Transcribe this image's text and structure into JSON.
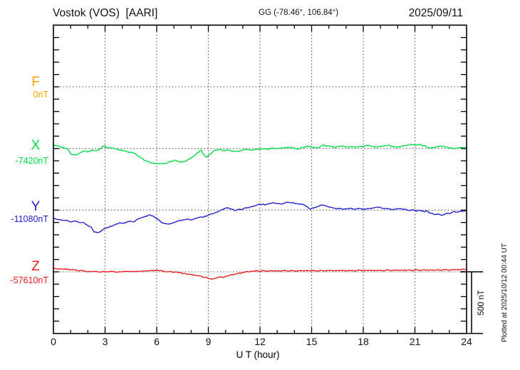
{
  "header": {
    "station_title": "Vostok (VOS)  [AARI]",
    "gg_coords": "GG (-78.46°, 106.84°)",
    "date": "2025/09/11"
  },
  "x_axis": {
    "label": "U T (hour)",
    "tick_labels": [
      "0",
      "3",
      "6",
      "9",
      "12",
      "15",
      "18",
      "21",
      "24"
    ],
    "min_hour": 0,
    "max_hour": 24,
    "major_step_hours": 3,
    "minor_step_hours": 1
  },
  "components": [
    {
      "id": "F",
      "label": "F",
      "baseline_label": "0nT",
      "baseline_nT": 0,
      "color": "#FFA400"
    },
    {
      "id": "X",
      "label": "X",
      "baseline_label": "-7420nT",
      "baseline_nT": -7420,
      "color": "#00DD44"
    },
    {
      "id": "Y",
      "label": "Y",
      "baseline_label": "-11080nT",
      "baseline_nT": -11080,
      "color": "#2020D0"
    },
    {
      "id": "Z",
      "label": "Z",
      "baseline_label": "-57610nT",
      "baseline_nT": -57610,
      "color": "#ED1C1C"
    }
  ],
  "scale_bar": {
    "label": "500 nT",
    "nT": 500
  },
  "footer_note": "Plotted at 2025/10/12 00:44 UT",
  "chart_data": {
    "type": "line",
    "title": "Vostok (VOS) [AARI] magnetogram 2025/09/11",
    "xlabel": "U T (hour)",
    "x_range": [
      0,
      24
    ],
    "units": "nT",
    "grid": "dotted vertical lines every 3 hours; dotted horizontal baseline per component",
    "legend_position": "left axis component labels",
    "scale_note": "500 nT reference bar at right; minor division = 100 nT",
    "series": [
      {
        "name": "F",
        "baseline_nT": 0,
        "color": "#FFA400",
        "points_hour_offset_nT": []
      },
      {
        "name": "X",
        "baseline_nT": -7420,
        "color": "#00DD44",
        "points_hour_offset_nT": [
          [
            0,
            27
          ],
          [
            0.29,
            21
          ],
          [
            0.62,
            4
          ],
          [
            0.83,
            -2
          ],
          [
            1.03,
            -48
          ],
          [
            1.24,
            -54
          ],
          [
            1.53,
            -36
          ],
          [
            1.78,
            -19
          ],
          [
            2.07,
            -25
          ],
          [
            2.28,
            -13
          ],
          [
            2.48,
            -19
          ],
          [
            2.77,
            4
          ],
          [
            2.98,
            21
          ],
          [
            3.19,
            4
          ],
          [
            3.43,
            4
          ],
          [
            3.64,
            -2
          ],
          [
            3.85,
            -13
          ],
          [
            4.14,
            -19
          ],
          [
            4.43,
            -31
          ],
          [
            4.76,
            -42
          ],
          [
            5.09,
            -77
          ],
          [
            5.38,
            -100
          ],
          [
            5.67,
            -117
          ],
          [
            6,
            -123
          ],
          [
            6.33,
            -123
          ],
          [
            6.62,
            -117
          ],
          [
            6.83,
            -106
          ],
          [
            7.03,
            -94
          ],
          [
            7.24,
            -106
          ],
          [
            7.45,
            -111
          ],
          [
            7.74,
            -100
          ],
          [
            7.99,
            -77
          ],
          [
            8.23,
            -54
          ],
          [
            8.44,
            -31
          ],
          [
            8.57,
            -13
          ],
          [
            8.73,
            -48
          ],
          [
            8.9,
            -71
          ],
          [
            9.1,
            -48
          ],
          [
            9.31,
            -19
          ],
          [
            9.64,
            -8
          ],
          [
            9.93,
            -19
          ],
          [
            10.22,
            -13
          ],
          [
            10.55,
            -25
          ],
          [
            10.88,
            -19
          ],
          [
            11.17,
            -8
          ],
          [
            11.46,
            -13
          ],
          [
            11.79,
            -8
          ],
          [
            12.12,
            -2
          ],
          [
            12.41,
            -8
          ],
          [
            12.7,
            4
          ],
          [
            13.03,
            -2
          ],
          [
            13.37,
            4
          ],
          [
            13.66,
            10
          ],
          [
            13.94,
            4
          ],
          [
            14.28,
            -2
          ],
          [
            14.61,
            10
          ],
          [
            14.77,
            21
          ],
          [
            15.02,
            10
          ],
          [
            15.31,
            4
          ],
          [
            15.52,
            16
          ],
          [
            15.72,
            27
          ],
          [
            16.01,
            21
          ],
          [
            16.26,
            10
          ],
          [
            16.55,
            16
          ],
          [
            16.76,
            21
          ],
          [
            17.09,
            10
          ],
          [
            17.38,
            16
          ],
          [
            17.59,
            10
          ],
          [
            17.92,
            16
          ],
          [
            18.21,
            27
          ],
          [
            18.41,
            21
          ],
          [
            18.74,
            10
          ],
          [
            18.91,
            16
          ],
          [
            19.16,
            21
          ],
          [
            19.45,
            27
          ],
          [
            19.74,
            16
          ],
          [
            19.99,
            10
          ],
          [
            20.28,
            21
          ],
          [
            20.57,
            27
          ],
          [
            20.81,
            33
          ],
          [
            21.1,
            27
          ],
          [
            21.31,
            33
          ],
          [
            21.52,
            21
          ],
          [
            21.72,
            10
          ],
          [
            21.93,
            4
          ],
          [
            22.22,
            10
          ],
          [
            22.47,
            21
          ],
          [
            22.63,
            16
          ],
          [
            22.88,
            10
          ],
          [
            23.05,
            4
          ],
          [
            23.3,
            -2
          ],
          [
            23.59,
            8
          ],
          [
            23.79,
            5
          ],
          [
            24,
            10
          ]
        ]
      },
      {
        "name": "Y",
        "baseline_nT": -11080,
        "color": "#2020D0",
        "points_hour_offset_nT": [
          [
            0,
            -67
          ],
          [
            0.41,
            -79
          ],
          [
            0.83,
            -85
          ],
          [
            1.03,
            -96
          ],
          [
            1.32,
            -90
          ],
          [
            1.57,
            -102
          ],
          [
            1.78,
            -102
          ],
          [
            1.94,
            -119
          ],
          [
            2.19,
            -137
          ],
          [
            2.36,
            -177
          ],
          [
            2.57,
            -183
          ],
          [
            2.81,
            -165
          ],
          [
            3.1,
            -142
          ],
          [
            3.39,
            -131
          ],
          [
            3.64,
            -114
          ],
          [
            3.85,
            -102
          ],
          [
            4.01,
            -108
          ],
          [
            4.26,
            -96
          ],
          [
            4.47,
            -90
          ],
          [
            4.68,
            -96
          ],
          [
            4.88,
            -73
          ],
          [
            5.09,
            -62
          ],
          [
            5.34,
            -50
          ],
          [
            5.59,
            -39
          ],
          [
            5.83,
            -50
          ],
          [
            6.04,
            -73
          ],
          [
            6.25,
            -96
          ],
          [
            6.46,
            -108
          ],
          [
            6.66,
            -114
          ],
          [
            6.87,
            -108
          ],
          [
            7.08,
            -96
          ],
          [
            7.28,
            -85
          ],
          [
            7.53,
            -79
          ],
          [
            7.74,
            -73
          ],
          [
            7.94,
            -79
          ],
          [
            8.15,
            -73
          ],
          [
            8.4,
            -62
          ],
          [
            8.61,
            -56
          ],
          [
            8.86,
            -50
          ],
          [
            9.1,
            -33
          ],
          [
            9.31,
            -27
          ],
          [
            9.52,
            -16
          ],
          [
            9.72,
            0
          ],
          [
            9.93,
            13
          ],
          [
            10.14,
            19
          ],
          [
            10.39,
            8
          ],
          [
            10.59,
            -4
          ],
          [
            10.8,
            8
          ],
          [
            11.01,
            8
          ],
          [
            11.21,
            19
          ],
          [
            11.42,
            25
          ],
          [
            11.63,
            31
          ],
          [
            11.83,
            42
          ],
          [
            12,
            48
          ],
          [
            12.29,
            42
          ],
          [
            12.54,
            54
          ],
          [
            12.74,
            59
          ],
          [
            13.03,
            54
          ],
          [
            13.24,
            48
          ],
          [
            13.45,
            59
          ],
          [
            13.66,
            65
          ],
          [
            13.86,
            59
          ],
          [
            14.11,
            54
          ],
          [
            14.32,
            48
          ],
          [
            14.57,
            42
          ],
          [
            14.77,
            25
          ],
          [
            14.94,
            8
          ],
          [
            15.14,
            19
          ],
          [
            15.39,
            31
          ],
          [
            15.6,
            42
          ],
          [
            15.81,
            36
          ],
          [
            16.01,
            25
          ],
          [
            16.22,
            19
          ],
          [
            16.43,
            13
          ],
          [
            16.68,
            13
          ],
          [
            16.88,
            8
          ],
          [
            17.17,
            13
          ],
          [
            17.46,
            8
          ],
          [
            17.79,
            13
          ],
          [
            18.08,
            8
          ],
          [
            18.33,
            13
          ],
          [
            18.62,
            19
          ],
          [
            18.83,
            25
          ],
          [
            19.03,
            19
          ],
          [
            19.32,
            13
          ],
          [
            19.57,
            8
          ],
          [
            19.86,
            8
          ],
          [
            20.15,
            13
          ],
          [
            20.4,
            8
          ],
          [
            20.69,
            -4
          ],
          [
            20.9,
            4
          ],
          [
            21.1,
            -8
          ],
          [
            21.31,
            -2
          ],
          [
            21.56,
            -13
          ],
          [
            21.72,
            -8
          ],
          [
            21.93,
            -25
          ],
          [
            22.14,
            -36
          ],
          [
            22.34,
            -31
          ],
          [
            22.55,
            -42
          ],
          [
            22.76,
            -31
          ],
          [
            22.97,
            -27
          ],
          [
            23.17,
            -16
          ],
          [
            23.38,
            -16
          ],
          [
            23.59,
            -10
          ],
          [
            23.79,
            -10
          ],
          [
            24,
            -2
          ]
        ]
      },
      {
        "name": "Z",
        "baseline_nT": -57610,
        "color": "#ED1C1C",
        "points_hour_offset_nT": [
          [
            0,
            27
          ],
          [
            0.41,
            24
          ],
          [
            0.83,
            21
          ],
          [
            1.24,
            16
          ],
          [
            1.53,
            10
          ],
          [
            1.86,
            4
          ],
          [
            2.19,
            1
          ],
          [
            2.48,
            4
          ],
          [
            2.77,
            -2
          ],
          [
            3.1,
            1
          ],
          [
            3.43,
            4
          ],
          [
            3.72,
            -2
          ],
          [
            4.01,
            1
          ],
          [
            4.34,
            4
          ],
          [
            4.68,
            1
          ],
          [
            5.01,
            4
          ],
          [
            5.34,
            7
          ],
          [
            5.67,
            10
          ],
          [
            5.92,
            13
          ],
          [
            6.17,
            10
          ],
          [
            6.41,
            4
          ],
          [
            6.74,
            1
          ],
          [
            7.03,
            -2
          ],
          [
            7.32,
            -8
          ],
          [
            7.57,
            -13
          ],
          [
            7.82,
            -19
          ],
          [
            8.07,
            -22
          ],
          [
            8.32,
            -31
          ],
          [
            8.57,
            -36
          ],
          [
            8.81,
            -45
          ],
          [
            9.06,
            -54
          ],
          [
            9.31,
            -57
          ],
          [
            9.52,
            -48
          ],
          [
            9.72,
            -39
          ],
          [
            9.89,
            -45
          ],
          [
            10.06,
            -36
          ],
          [
            10.3,
            -25
          ],
          [
            10.55,
            -19
          ],
          [
            10.8,
            -10
          ],
          [
            11.05,
            -5
          ],
          [
            11.3,
            1
          ],
          [
            11.59,
            4
          ],
          [
            11.88,
            7
          ],
          [
            12.29,
            7
          ],
          [
            12.7,
            8
          ],
          [
            13.12,
            7
          ],
          [
            13.53,
            9
          ],
          [
            13.94,
            8
          ],
          [
            14.36,
            9
          ],
          [
            14.77,
            10
          ],
          [
            15.19,
            9
          ],
          [
            15.6,
            10
          ],
          [
            16.01,
            11
          ],
          [
            16.43,
            10
          ],
          [
            16.84,
            11
          ],
          [
            17.26,
            10
          ],
          [
            17.67,
            12
          ],
          [
            18.08,
            11
          ],
          [
            18.5,
            12
          ],
          [
            18.91,
            11
          ],
          [
            19.32,
            13
          ],
          [
            19.74,
            12
          ],
          [
            20.15,
            13
          ],
          [
            20.57,
            13
          ],
          [
            20.98,
            14
          ],
          [
            21.39,
            13
          ],
          [
            21.81,
            14
          ],
          [
            22.22,
            14
          ],
          [
            22.63,
            15
          ],
          [
            23.05,
            14
          ],
          [
            23.46,
            17
          ],
          [
            23.71,
            20
          ],
          [
            24,
            18
          ]
        ]
      }
    ]
  }
}
